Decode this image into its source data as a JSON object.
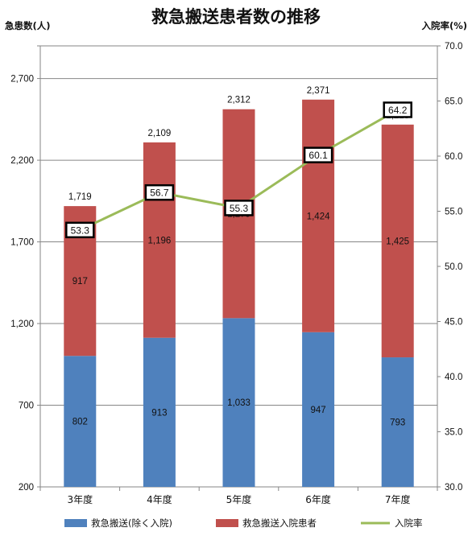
{
  "chart_data": {
    "type": "bar",
    "title": "救急搬送患者数の推移",
    "ylabel_left": "急患数(人)",
    "ylabel_right": "入院率(%)",
    "categories": [
      "3年度",
      "4年度",
      "5年度",
      "6年度",
      "7年度"
    ],
    "series": [
      {
        "name": "救急搬送(除く入院)",
        "type": "bar",
        "stack": "main",
        "color": "#4F81BD",
        "values": [
          802,
          913,
          1033,
          947,
          793
        ]
      },
      {
        "name": "救急搬送入院患者",
        "type": "bar",
        "stack": "main",
        "color": "#C0504D",
        "values": [
          917,
          1196,
          1279,
          1424,
          1425
        ]
      },
      {
        "name": "入院率",
        "type": "line",
        "axis": "right",
        "color": "#9BBB59",
        "values": [
          53.3,
          56.7,
          55.3,
          60.1,
          64.2
        ]
      }
    ],
    "totals": [
      1719,
      2109,
      2312,
      2371,
      2218
    ],
    "ylim_left": [
      200,
      2900
    ],
    "yticks_left": [
      200,
      700,
      1200,
      1700,
      2200,
      2700
    ],
    "ylim_right": [
      30.0,
      70.0
    ],
    "yticks_right": [
      30.0,
      35.0,
      40.0,
      45.0,
      50.0,
      55.0,
      60.0,
      65.0,
      70.0
    ],
    "grid": true,
    "legend_position": "bottom"
  }
}
